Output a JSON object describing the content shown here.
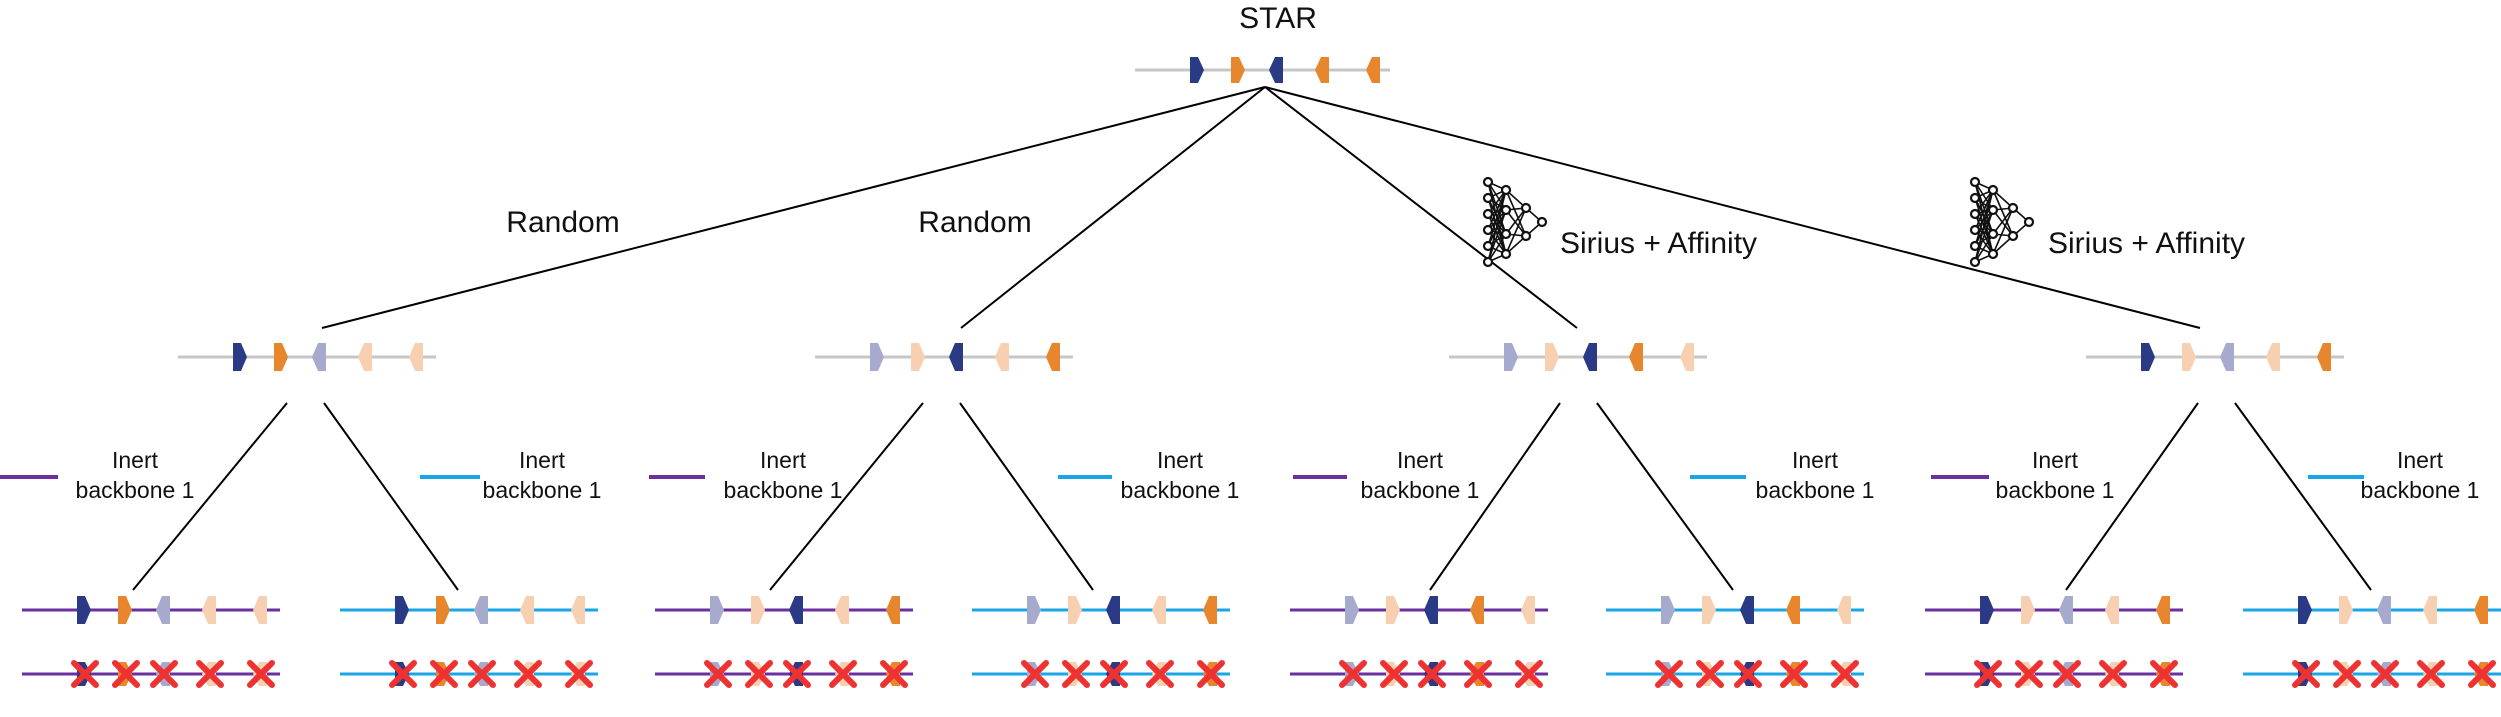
{
  "title": "STAR",
  "branches": [
    {
      "method": "Random",
      "has_network_icon": false
    },
    {
      "method": "Random",
      "has_network_icon": false
    },
    {
      "method": "Sirius + Affinity",
      "has_network_icon": true
    },
    {
      "method": "Sirius + Affinity",
      "has_network_icon": true
    }
  ],
  "backbones": [
    {
      "line1": "Inert",
      "line2": "backbone 1",
      "color": "#6b2fa0"
    },
    {
      "line1": "Inert",
      "line2": "backbone 1",
      "color": "#1aa6e6"
    }
  ],
  "colors": {
    "dark_blue": "#2b3a84",
    "orange": "#e8862e",
    "light_blue": "#a6abce",
    "peach": "#f6d0b0",
    "backbone_gray": "#c6c6c6",
    "x_mark": "#ee3231",
    "edge": "#000000"
  },
  "modules": {
    "root": [
      "dark_blue",
      "orange",
      "dark_blue",
      "orange",
      "orange"
    ],
    "level1": [
      [
        "dark_blue",
        "orange",
        "light_blue",
        "peach",
        "peach"
      ],
      [
        "light_blue",
        "peach",
        "dark_blue",
        "peach",
        "orange"
      ],
      [
        "light_blue",
        "peach",
        "dark_blue",
        "orange",
        "peach"
      ],
      [
        "dark_blue",
        "peach",
        "light_blue",
        "peach",
        "orange"
      ]
    ]
  },
  "icons": {
    "network": "neural-network-icon",
    "cross": "x-mark-icon"
  }
}
